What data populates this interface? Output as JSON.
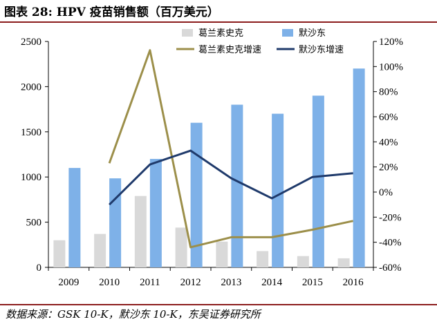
{
  "title": "图表 28:  HPV 疫苗销售额（百万美元）",
  "source": "数据来源：GSK 10-K，默沙东 10-K，东吴证券研究所",
  "chart_data": {
    "type": "bar",
    "categories": [
      "2009",
      "2010",
      "2011",
      "2012",
      "2013",
      "2014",
      "2015",
      "2016"
    ],
    "series": [
      {
        "name": "葛兰素史克",
        "type": "bar",
        "axis": "left",
        "color": "#D9D9D9",
        "values": [
          300,
          370,
          790,
          440,
          285,
          180,
          125,
          100
        ]
      },
      {
        "name": "默沙东",
        "type": "bar",
        "axis": "left",
        "color": "#7EB1E8",
        "values": [
          1100,
          985,
          1200,
          1600,
          1800,
          1700,
          1900,
          2200
        ]
      },
      {
        "name": "葛兰素史克增速",
        "type": "line",
        "axis": "right",
        "color": "#9C8F4A",
        "values": [
          null,
          23,
          113,
          -44,
          -36,
          -36,
          -30,
          -23
        ]
      },
      {
        "name": "默沙东增速",
        "type": "line",
        "axis": "right",
        "color": "#1F3A6B",
        "values": [
          null,
          -10,
          22,
          33,
          11,
          -5,
          12,
          15
        ]
      }
    ],
    "ylim_left": [
      0,
      2500
    ],
    "yticks_left": [
      "0",
      "500",
      "1000",
      "1500",
      "2000",
      "2500"
    ],
    "ylim_right": [
      -60,
      120
    ],
    "yticks_right": [
      "-60%",
      "-40%",
      "-20%",
      "0%",
      "20%",
      "40%",
      "60%",
      "80%",
      "100%",
      "120%"
    ],
    "legend_position": "top-right",
    "grid": false
  }
}
